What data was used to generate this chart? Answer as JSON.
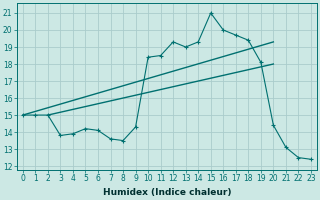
{
  "xlabel": "Humidex (Indice chaleur)",
  "background_color": "#cce8e4",
  "grid_color": "#aacccc",
  "line_color": "#007070",
  "xlim": [
    -0.5,
    23.5
  ],
  "ylim": [
    11.8,
    21.6
  ],
  "yticks": [
    12,
    13,
    14,
    15,
    16,
    17,
    18,
    19,
    20,
    21
  ],
  "xticks": [
    0,
    1,
    2,
    3,
    4,
    5,
    6,
    7,
    8,
    9,
    10,
    11,
    12,
    13,
    14,
    15,
    16,
    17,
    18,
    19,
    20,
    21,
    22,
    23
  ],
  "series1_x": [
    0,
    1,
    2,
    3,
    4,
    5,
    6,
    7,
    8,
    9,
    10,
    11,
    12,
    13,
    14,
    15,
    16,
    17,
    18,
    19,
    20,
    21,
    22,
    23
  ],
  "series1_y": [
    15.0,
    15.0,
    15.0,
    13.8,
    13.9,
    14.2,
    14.1,
    13.6,
    13.5,
    14.3,
    18.4,
    18.5,
    19.3,
    19.0,
    19.3,
    21.0,
    20.0,
    19.7,
    19.4,
    18.1,
    14.4,
    13.1,
    12.5,
    12.4
  ],
  "series2_x": [
    0,
    20
  ],
  "series2_y": [
    15.0,
    19.3
  ],
  "series3_x": [
    2,
    20
  ],
  "series3_y": [
    15.0,
    18.0
  ],
  "tick_fontsize": 5.5,
  "xlabel_fontsize": 6.5
}
